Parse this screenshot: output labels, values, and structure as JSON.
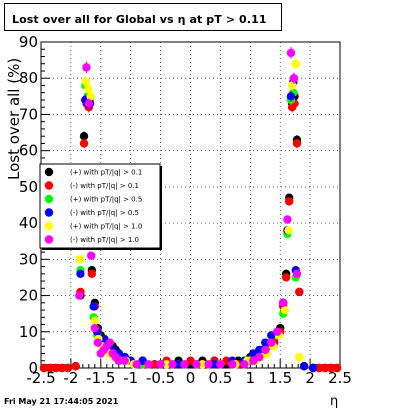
{
  "chart_data": {
    "type": "scatter",
    "title": "Lost over all for Global vs   η at pT > 0.11",
    "xlabel": "η",
    "ylabel": "Lost over all (%)",
    "xlim": [
      -2.5,
      2.5
    ],
    "ylim": [
      0,
      90
    ],
    "x_ticks": [
      "-2.5",
      "-2",
      "-1.5",
      "-1",
      "-0.5",
      "0",
      "0.5",
      "1",
      "1.5",
      "2",
      "2.5"
    ],
    "y_ticks": [
      "0",
      "10",
      "20",
      "30",
      "40",
      "50",
      "60",
      "70",
      "80",
      "90"
    ],
    "grid": true,
    "legend_position": "middle-left",
    "footer": "Fri May 21 17:44:05 2021",
    "series": [
      {
        "name": "(+) with pT/|q| > 0.1",
        "color": "#000000",
        "points": [
          [
            -2.45,
            0
          ],
          [
            -2.35,
            0
          ],
          [
            -2.25,
            0
          ],
          [
            -2.15,
            0
          ],
          [
            -2.05,
            0
          ],
          [
            -1.92,
            0.5
          ],
          [
            -1.84,
            20
          ],
          [
            -1.78,
            64
          ],
          [
            -1.74,
            74
          ],
          [
            -1.7,
            73
          ],
          [
            -1.65,
            27
          ],
          [
            -1.6,
            18
          ],
          [
            -1.55,
            11
          ],
          [
            -1.5,
            9
          ],
          [
            -1.45,
            8
          ],
          [
            -1.4,
            7
          ],
          [
            -1.35,
            6
          ],
          [
            -1.3,
            6
          ],
          [
            -1.25,
            5
          ],
          [
            -1.2,
            4
          ],
          [
            -1.1,
            3
          ],
          [
            -1.0,
            2
          ],
          [
            -0.8,
            2
          ],
          [
            -0.6,
            1
          ],
          [
            -0.4,
            1
          ],
          [
            -0.2,
            2
          ],
          [
            0,
            1
          ],
          [
            0.2,
            2
          ],
          [
            0.4,
            2
          ],
          [
            0.6,
            1
          ],
          [
            0.8,
            2
          ],
          [
            1.0,
            3
          ],
          [
            1.1,
            4
          ],
          [
            1.2,
            5
          ],
          [
            1.3,
            6
          ],
          [
            1.4,
            8
          ],
          [
            1.5,
            11
          ],
          [
            1.55,
            18
          ],
          [
            1.6,
            26
          ],
          [
            1.65,
            47
          ],
          [
            1.7,
            73
          ],
          [
            1.74,
            75
          ],
          [
            1.78,
            63
          ],
          [
            1.82,
            21
          ],
          [
            1.9,
            0.5
          ],
          [
            2.05,
            0
          ],
          [
            2.15,
            0
          ],
          [
            2.25,
            0
          ],
          [
            2.35,
            0
          ],
          [
            2.45,
            0
          ]
        ]
      },
      {
        "name": "(-) with pT/|q| > 0.1",
        "color": "#ff0000",
        "points": [
          [
            -2.45,
            0
          ],
          [
            -2.35,
            0
          ],
          [
            -2.25,
            0
          ],
          [
            -2.15,
            0
          ],
          [
            -2.05,
            0
          ],
          [
            -1.92,
            0.5
          ],
          [
            -1.84,
            21
          ],
          [
            -1.78,
            62
          ],
          [
            -1.74,
            73
          ],
          [
            -1.7,
            72
          ],
          [
            -1.65,
            26
          ],
          [
            -1.6,
            17
          ],
          [
            -1.55,
            10
          ],
          [
            -1.5,
            8
          ],
          [
            -1.45,
            7
          ],
          [
            -1.4,
            6
          ],
          [
            -1.35,
            5
          ],
          [
            -1.3,
            5
          ],
          [
            -1.25,
            4
          ],
          [
            -1.2,
            3
          ],
          [
            -1.1,
            3
          ],
          [
            -1.0,
            2
          ],
          [
            -0.8,
            1
          ],
          [
            -0.6,
            1
          ],
          [
            -0.4,
            2
          ],
          [
            -0.2,
            1
          ],
          [
            0,
            2
          ],
          [
            0.2,
            1
          ],
          [
            0.4,
            2
          ],
          [
            0.6,
            2
          ],
          [
            0.8,
            1
          ],
          [
            1.0,
            2
          ],
          [
            1.1,
            3
          ],
          [
            1.2,
            4
          ],
          [
            1.3,
            6
          ],
          [
            1.4,
            7
          ],
          [
            1.5,
            10
          ],
          [
            1.55,
            17
          ],
          [
            1.6,
            25
          ],
          [
            1.65,
            46
          ],
          [
            1.7,
            72
          ],
          [
            1.74,
            73
          ],
          [
            1.78,
            62
          ],
          [
            1.82,
            21
          ],
          [
            1.9,
            0.5
          ],
          [
            2.05,
            0
          ],
          [
            2.15,
            0
          ],
          [
            2.25,
            0
          ],
          [
            2.35,
            0
          ],
          [
            2.45,
            0
          ]
        ]
      },
      {
        "name": "(+) with pT/|q| > 0.5",
        "color": "#00ff00",
        "points": [
          [
            -1.84,
            27
          ],
          [
            -1.76,
            78
          ],
          [
            -1.72,
            75
          ],
          [
            -1.68,
            74
          ],
          [
            -1.62,
            14
          ],
          [
            -1.56,
            9
          ],
          [
            -1.5,
            7
          ],
          [
            -1.44,
            6
          ],
          [
            -1.38,
            5
          ],
          [
            -1.3,
            4
          ],
          [
            -1.2,
            3
          ],
          [
            -1.1,
            2
          ],
          [
            -1.0,
            2
          ],
          [
            -0.8,
            1
          ],
          [
            -0.5,
            1
          ],
          [
            -0.2,
            1
          ],
          [
            0.1,
            1
          ],
          [
            0.4,
            1
          ],
          [
            0.7,
            1
          ],
          [
            0.9,
            2
          ],
          [
            1.05,
            3
          ],
          [
            1.15,
            4
          ],
          [
            1.25,
            5
          ],
          [
            1.35,
            7
          ],
          [
            1.45,
            9
          ],
          [
            1.55,
            15
          ],
          [
            1.62,
            37
          ],
          [
            1.68,
            74
          ],
          [
            1.72,
            76
          ],
          [
            1.76,
            25
          ]
        ]
      },
      {
        "name": "(-) with pT/|q| > 0.5",
        "color": "#0000ff",
        "points": [
          [
            -1.84,
            26
          ],
          [
            -1.76,
            74
          ],
          [
            -1.72,
            73
          ],
          [
            -1.68,
            73
          ],
          [
            -1.62,
            17
          ],
          [
            -1.56,
            10
          ],
          [
            -1.5,
            8
          ],
          [
            -1.44,
            8
          ],
          [
            -1.38,
            6
          ],
          [
            -1.3,
            5
          ],
          [
            -1.2,
            4
          ],
          [
            -1.1,
            3
          ],
          [
            -1.0,
            2
          ],
          [
            -0.8,
            2
          ],
          [
            -0.5,
            1
          ],
          [
            -0.2,
            1
          ],
          [
            0.1,
            1
          ],
          [
            0.4,
            1
          ],
          [
            0.7,
            2
          ],
          [
            0.9,
            2
          ],
          [
            1.05,
            4
          ],
          [
            1.15,
            5
          ],
          [
            1.25,
            7
          ],
          [
            1.35,
            9
          ],
          [
            1.45,
            10
          ],
          [
            1.55,
            18
          ],
          [
            1.62,
            38
          ],
          [
            1.68,
            75
          ],
          [
            1.72,
            79
          ],
          [
            1.76,
            27
          ],
          [
            1.9,
            0.5
          ],
          [
            2.05,
            0
          ]
        ]
      },
      {
        "name": "(+) with pT/|q| > 1.0",
        "color": "#ffff00",
        "points": [
          [
            -1.85,
            30
          ],
          [
            -1.75,
            79
          ],
          [
            -1.71,
            77
          ],
          [
            -1.67,
            75
          ],
          [
            -1.6,
            13
          ],
          [
            -1.54,
            8
          ],
          [
            -1.48,
            6
          ],
          [
            -1.42,
            5
          ],
          [
            -1.36,
            4
          ],
          [
            -1.28,
            3
          ],
          [
            -1.18,
            2
          ],
          [
            -1.08,
            2
          ],
          [
            -0.95,
            1
          ],
          [
            -0.7,
            1
          ],
          [
            -0.4,
            1
          ],
          [
            -0.1,
            1
          ],
          [
            0.2,
            1
          ],
          [
            0.5,
            1
          ],
          [
            0.75,
            1
          ],
          [
            0.95,
            2
          ],
          [
            1.08,
            2
          ],
          [
            1.18,
            3
          ],
          [
            1.28,
            4
          ],
          [
            1.38,
            6
          ],
          [
            1.48,
            9
          ],
          [
            1.58,
            16
          ],
          [
            1.64,
            38
          ],
          [
            1.7,
            78
          ],
          [
            1.76,
            84
          ],
          [
            1.82,
            3
          ]
        ]
      },
      {
        "name": "(-) with pT/|q| > 1.0",
        "color": "#ff00ff",
        "points": [
          [
            -1.86,
            20
          ],
          [
            -1.74,
            83
          ],
          [
            -1.7,
            73
          ],
          [
            -1.66,
            31
          ],
          [
            -1.6,
            11
          ],
          [
            -1.55,
            7
          ],
          [
            -1.5,
            4
          ],
          [
            -1.45,
            5
          ],
          [
            -1.4,
            6
          ],
          [
            -1.35,
            7
          ],
          [
            -1.3,
            4
          ],
          [
            -1.25,
            3
          ],
          [
            -1.2,
            2
          ],
          [
            -1.1,
            2
          ],
          [
            -0.9,
            1
          ],
          [
            -0.7,
            1
          ],
          [
            -0.5,
            1
          ],
          [
            -0.3,
            1
          ],
          [
            -0.1,
            1
          ],
          [
            0.1,
            1
          ],
          [
            0.3,
            1
          ],
          [
            0.5,
            1
          ],
          [
            0.7,
            1
          ],
          [
            0.9,
            1
          ],
          [
            1.05,
            2
          ],
          [
            1.15,
            3
          ],
          [
            1.25,
            5
          ],
          [
            1.35,
            7
          ],
          [
            1.45,
            10
          ],
          [
            1.55,
            18
          ],
          [
            1.62,
            41
          ],
          [
            1.68,
            87
          ],
          [
            1.73,
            80
          ],
          [
            1.78,
            26
          ]
        ]
      }
    ]
  }
}
